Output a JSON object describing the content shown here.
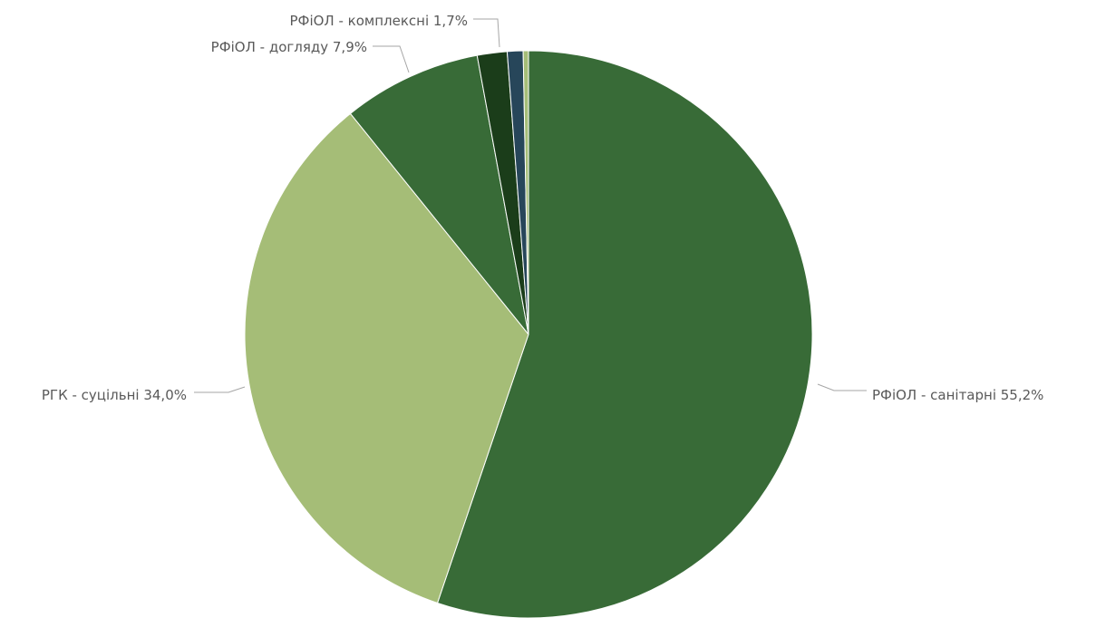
{
  "chart_data": {
    "type": "pie",
    "slices": [
      {
        "label": "РФіОЛ - санітарні 55,2%",
        "name": "РФіОЛ - санітарні",
        "value": 55.2,
        "color": "#386b37"
      },
      {
        "label": "РГК - суцільні 34,0%",
        "name": "РГК - суцільні",
        "value": 34.0,
        "color": "#a5bd77"
      },
      {
        "label": "РФіОЛ - догляду 7,9%",
        "name": "РФіОЛ - догляду",
        "value": 7.9,
        "color": "#386b37"
      },
      {
        "label": "РФіОЛ - комплексні 1,7%",
        "name": "РФіОЛ - комплексні",
        "value": 1.7,
        "color": "#1b3d1a"
      },
      {
        "label": "",
        "name": "",
        "value": 0.9,
        "color": "#27465a"
      },
      {
        "label": "",
        "name": "",
        "value": 0.3,
        "color": "#a5bd77"
      }
    ],
    "start_angle": "12 o'clock",
    "direction": "clockwise",
    "legend": "none",
    "data_labels": "outside with leader lines"
  }
}
